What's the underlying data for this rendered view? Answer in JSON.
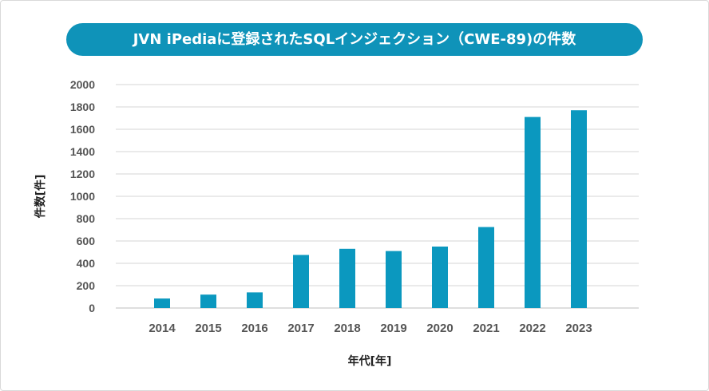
{
  "chart_data": {
    "type": "bar",
    "title": "JVN iPediaに登録されたSQLインジェクション（CWE-89)の件数",
    "xlabel": "年代[年]",
    "ylabel": "件数[件]",
    "categories": [
      "2014",
      "2015",
      "2016",
      "2017",
      "2018",
      "2019",
      "2020",
      "2021",
      "2022",
      "2023"
    ],
    "values": [
      85,
      120,
      140,
      475,
      530,
      510,
      550,
      725,
      1710,
      1770
    ],
    "yticks": [
      "0",
      "200",
      "400",
      "600",
      "800",
      "1000",
      "1200",
      "1400",
      "1600",
      "1800",
      "2000"
    ],
    "ylim": [
      0,
      2000
    ],
    "grid": true,
    "legend": "none",
    "bar_color": "#0b98bf",
    "title_bg_color": "#0f93b9"
  }
}
